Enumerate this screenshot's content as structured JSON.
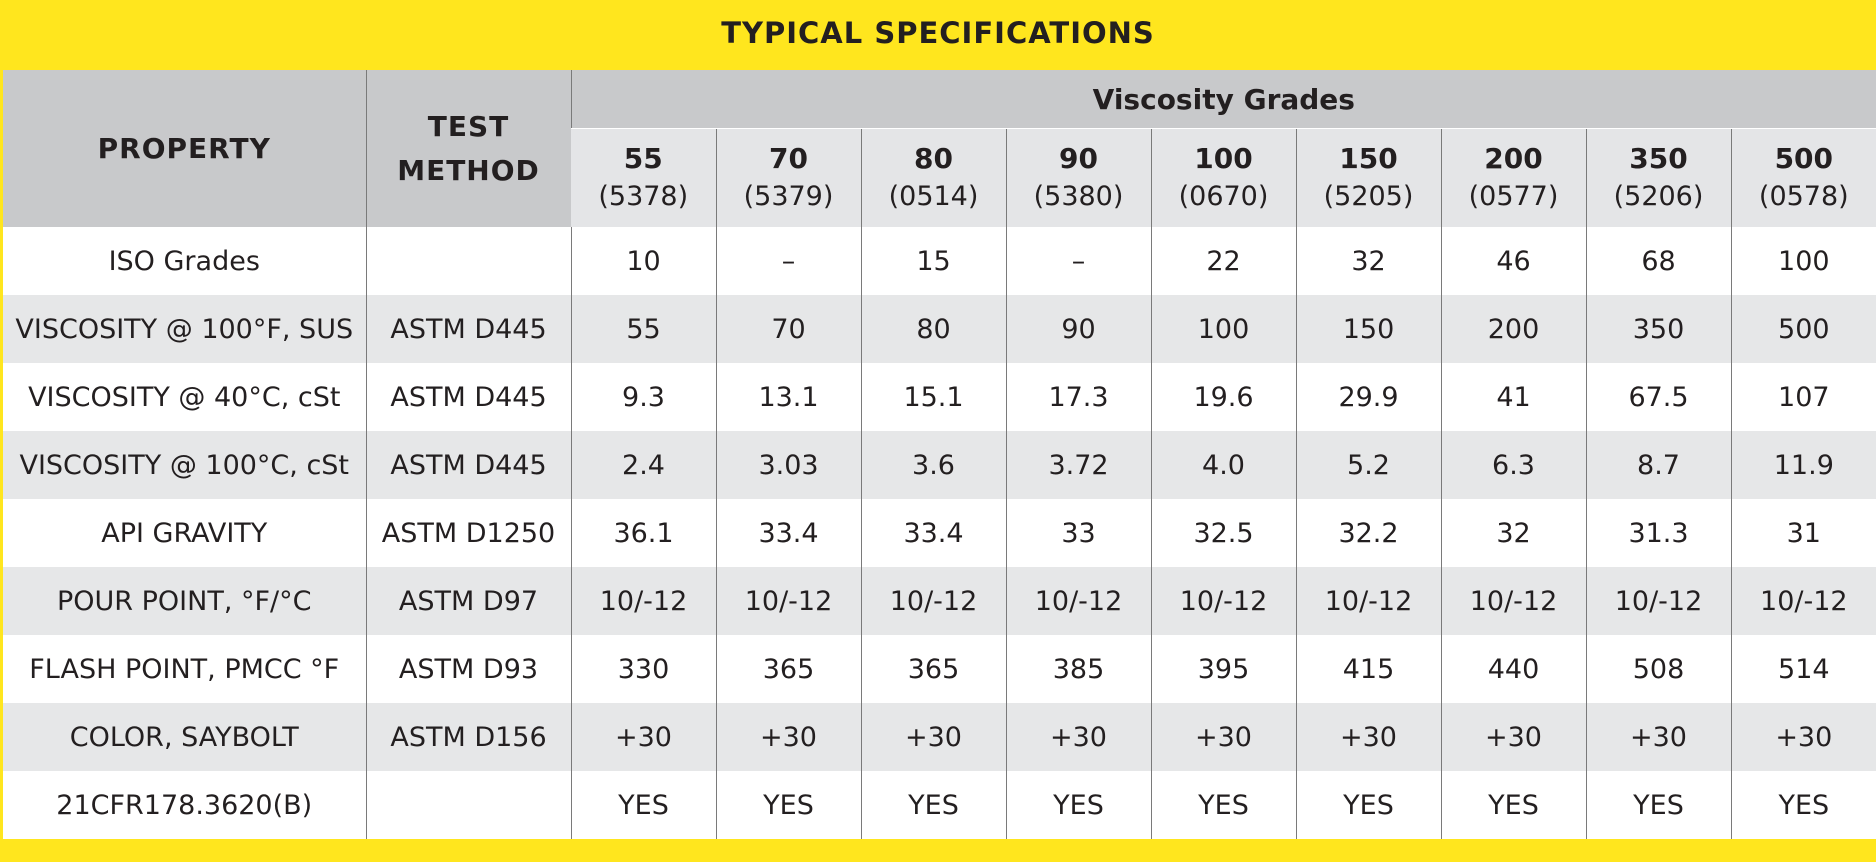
{
  "title": "TYPICAL SPECIFICATIONS",
  "headers": {
    "property": "PROPERTY",
    "test_method_line1": "TEST",
    "test_method_line2": "METHOD",
    "group": "Viscosity Grades"
  },
  "grades": [
    {
      "grade": "55",
      "code": "(5378)"
    },
    {
      "grade": "70",
      "code": "(5379)"
    },
    {
      "grade": "80",
      "code": "(0514)"
    },
    {
      "grade": "90",
      "code": "(5380)"
    },
    {
      "grade": "100",
      "code": "(0670)"
    },
    {
      "grade": "150",
      "code": "(5205)"
    },
    {
      "grade": "200",
      "code": "(0577)"
    },
    {
      "grade": "350",
      "code": "(5206)"
    },
    {
      "grade": "500",
      "code": "(0578)"
    }
  ],
  "rows": [
    {
      "property": "ISO Grades",
      "method": "",
      "values": [
        "10",
        "–",
        "15",
        "–",
        "22",
        "32",
        "46",
        "68",
        "100"
      ]
    },
    {
      "property": "VISCOSITY @ 100°F, SUS",
      "method": "ASTM D445",
      "values": [
        "55",
        "70",
        "80",
        "90",
        "100",
        "150",
        "200",
        "350",
        "500"
      ]
    },
    {
      "property": "VISCOSITY @ 40°C, cSt",
      "method": "ASTM D445",
      "values": [
        "9.3",
        "13.1",
        "15.1",
        "17.3",
        "19.6",
        "29.9",
        "41",
        "67.5",
        "107"
      ]
    },
    {
      "property": "VISCOSITY @ 100°C, cSt",
      "method": "ASTM D445",
      "values": [
        "2.4",
        "3.03",
        "3.6",
        "3.72",
        "4.0",
        "5.2",
        "6.3",
        "8.7",
        "11.9"
      ]
    },
    {
      "property": "API GRAVITY",
      "method": "ASTM D1250",
      "values": [
        "36.1",
        "33.4",
        "33.4",
        "33",
        "32.5",
        "32.2",
        "32",
        "31.3",
        "31"
      ]
    },
    {
      "property": "POUR POINT, °F/°C",
      "method": "ASTM D97",
      "values": [
        "10/-12",
        "10/-12",
        "10/-12",
        "10/-12",
        "10/-12",
        "10/-12",
        "10/-12",
        "10/-12",
        "10/-12"
      ]
    },
    {
      "property": "FLASH POINT, PMCC °F",
      "method": "ASTM D93",
      "values": [
        "330",
        "365",
        "365",
        "385",
        "395",
        "415",
        "440",
        "508",
        "514"
      ]
    },
    {
      "property": "COLOR, SAYBOLT",
      "method": "ASTM D156",
      "values": [
        "+30",
        "+30",
        "+30",
        "+30",
        "+30",
        "+30",
        "+30",
        "+30",
        "+30"
      ]
    },
    {
      "property": "21CFR178.3620(B)",
      "method": "",
      "values": [
        "YES",
        "YES",
        "YES",
        "YES",
        "YES",
        "YES",
        "YES",
        "YES",
        "YES"
      ]
    }
  ],
  "colors": {
    "banner": "#ffe61e",
    "header_dark": "#c8c9cb",
    "header_light": "#e4e5e7",
    "row_alt": "#e6e7e8"
  }
}
